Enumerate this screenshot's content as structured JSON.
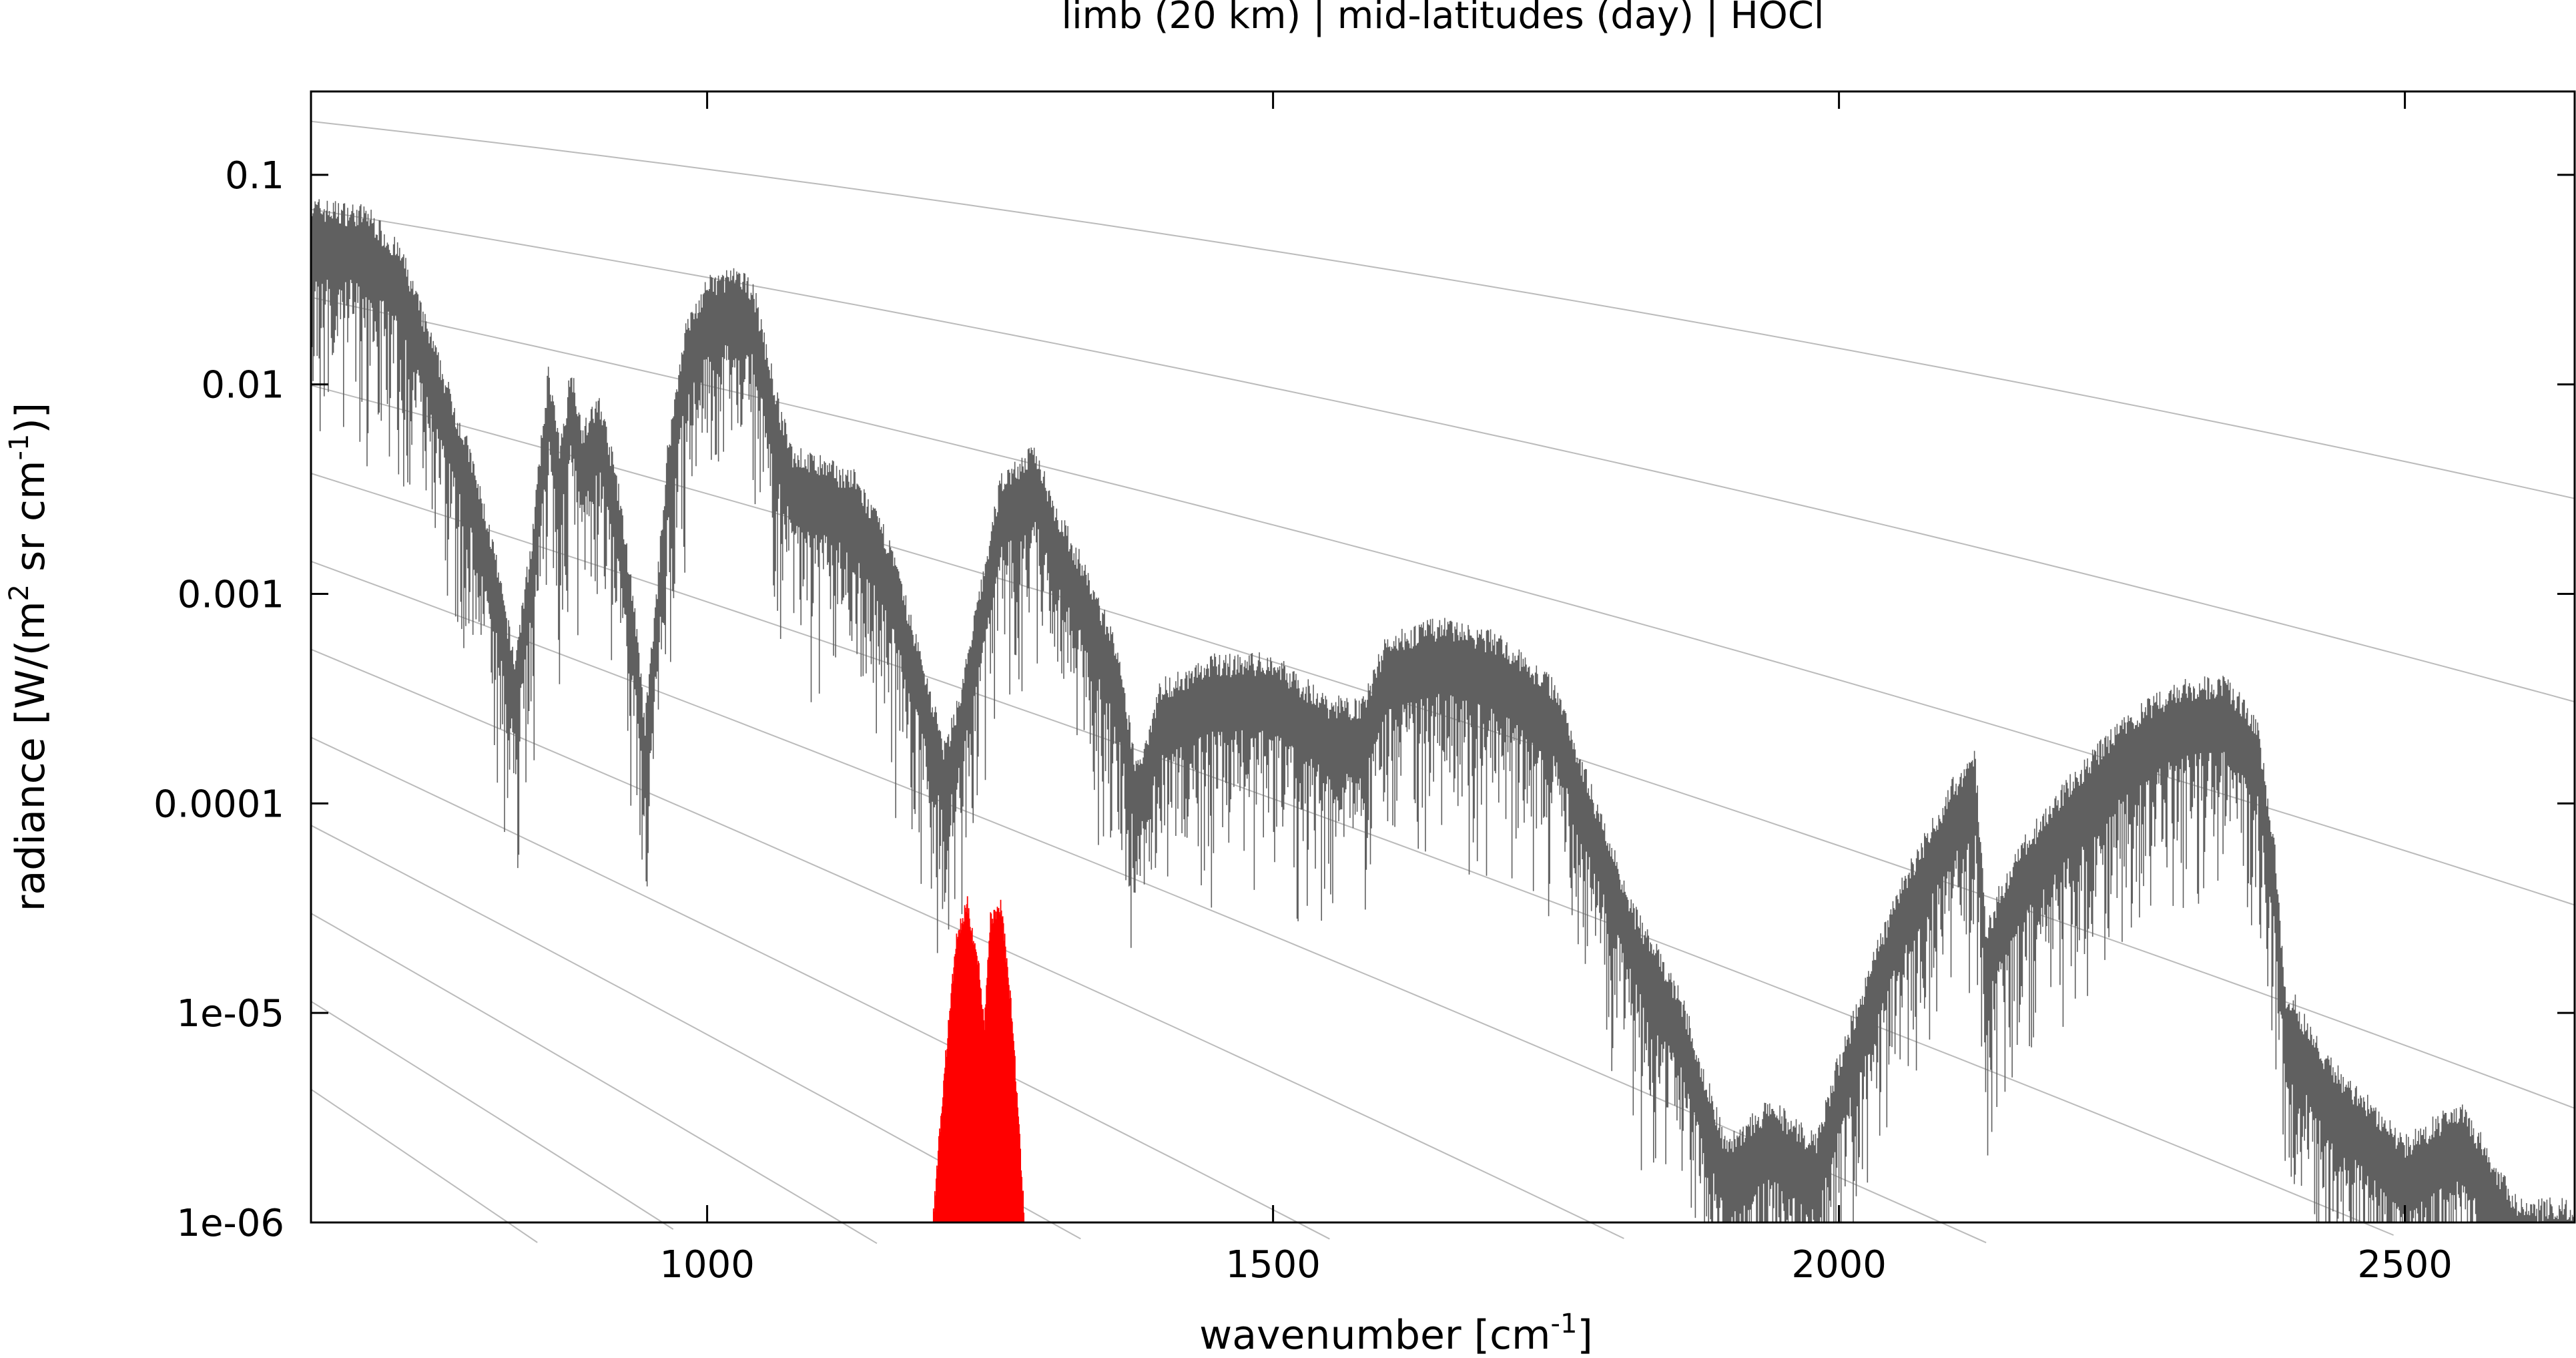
{
  "chart_data": {
    "type": "line",
    "title": "limb (20 km) | mid-latitudes (day) | HOCl",
    "xlabel": "wavenumber [cm",
    "xlabel_sup": "-1",
    "xlabel_end": "]",
    "ylabel": "radiance [W/(m",
    "ylabel_sup1": "2",
    "ylabel_mid": " sr cm",
    "ylabel_sup2": "-1",
    "ylabel_end": ")]",
    "xlim": [
      650,
      2650
    ],
    "ylim": [
      1e-06,
      0.25
    ],
    "yscale": "log",
    "grid": false,
    "legend": "none",
    "x_ticks": [
      1000,
      1500,
      2000,
      2500
    ],
    "x_tick_labels": [
      "1000",
      "1500",
      "2000",
      "2500"
    ],
    "y_ticks": [
      0.1,
      0.01,
      0.001,
      0.0001,
      1e-05,
      1e-06
    ],
    "y_tick_labels": [
      "0.1",
      "0.01",
      "0.001",
      "0.0001",
      "1e-05",
      "1e-06"
    ],
    "series": [
      {
        "kind": "spectrum",
        "color": "#606060",
        "envelope_x": [
          650,
          700,
          730,
          760,
          790,
          810,
          830,
          845,
          860,
          870,
          880,
          890,
          905,
          920,
          935,
          945,
          955,
          965,
          980,
          1000,
          1020,
          1040,
          1060,
          1065,
          1075,
          1100,
          1130,
          1160,
          1190,
          1210,
          1225,
          1240,
          1260,
          1290,
          1310,
          1330,
          1360,
          1380,
          1400,
          1450,
          1500,
          1550,
          1580,
          1600,
          1650,
          1700,
          1750,
          1780,
          1820,
          1860,
          1900,
          1940,
          1980,
          2000,
          2050,
          2100,
          2120,
          2130,
          2140,
          2160,
          2200,
          2250,
          2300,
          2340,
          2370,
          2385,
          2395,
          2400,
          2430,
          2470,
          2500,
          2550,
          2600,
          2650
        ],
        "envelope_y": [
          0.06,
          0.055,
          0.035,
          0.012,
          0.004,
          0.0015,
          0.0004,
          0.0015,
          0.01,
          0.004,
          0.01,
          0.005,
          0.007,
          0.003,
          0.0008,
          0.0002,
          0.0008,
          0.004,
          0.015,
          0.025,
          0.028,
          0.025,
          0.008,
          0.006,
          0.004,
          0.0035,
          0.003,
          0.0015,
          0.0004,
          0.00015,
          0.0003,
          0.0008,
          0.003,
          0.004,
          0.002,
          0.0012,
          0.0005,
          0.00012,
          0.0003,
          0.0004,
          0.0004,
          0.00025,
          0.00025,
          0.0005,
          0.0006,
          0.0005,
          0.0003,
          0.0001,
          2.5e-05,
          1e-05,
          2e-06,
          3e-06,
          2e-06,
          5e-06,
          3e-05,
          0.0001,
          0.00015,
          2e-05,
          3e-05,
          5e-05,
          0.0001,
          0.0002,
          0.0003,
          0.00032,
          0.0002,
          5e-05,
          1e-05,
          1e-05,
          5e-06,
          3e-06,
          2e-06,
          3e-06,
          1e-06,
          1e-06
        ]
      },
      {
        "kind": "HOCl band",
        "color": "#ff0000",
        "envelope_x": [
          1200,
          1210,
          1220,
          1230,
          1240,
          1245,
          1250,
          1260,
          1270,
          1280
        ],
        "envelope_y": [
          1e-06,
          5e-06,
          2e-05,
          3e-05,
          1.5e-05,
          8e-06,
          2.5e-05,
          3e-05,
          8e-06,
          1e-06
        ]
      }
    ],
    "reference_curves_count": 12,
    "reference_curves_color": "#bbbbbb"
  }
}
